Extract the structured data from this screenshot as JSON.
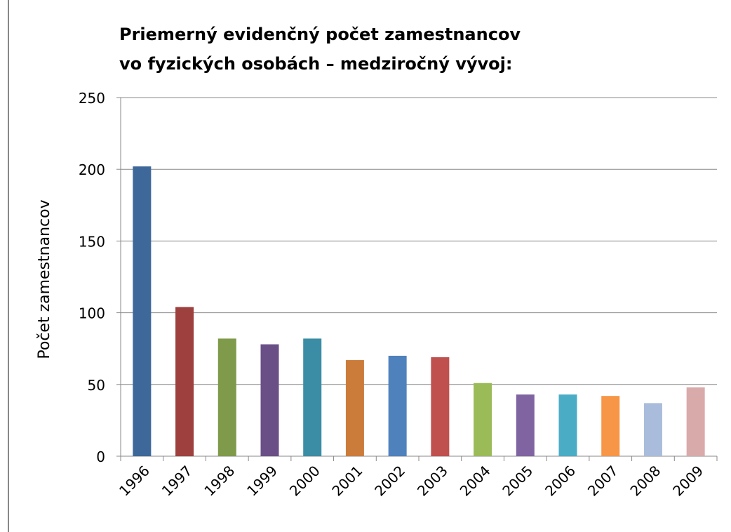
{
  "chart_data": {
    "type": "bar",
    "title": [
      "Priemerný evidenčný počet zamestnancov",
      "vo fyzických osobách – medziročný vývoj:"
    ],
    "ylabel": "Počet  zamestnancov",
    "categories": [
      "1996",
      "1997",
      "1998",
      "1999",
      "2000",
      "2001",
      "2002",
      "2003",
      "2004",
      "2005",
      "2006",
      "2007",
      "2008",
      "2009"
    ],
    "values": [
      202,
      104,
      82,
      78,
      82,
      67,
      70,
      69,
      51,
      43,
      43,
      42,
      37,
      48
    ],
    "colors": [
      "#3d6899",
      "#9e403d",
      "#7f9a4a",
      "#6a4f87",
      "#3a8da4",
      "#cc7c3a",
      "#4f81bd",
      "#c0504d",
      "#9bbb59",
      "#8064a2",
      "#4bacc6",
      "#f79646",
      "#a9bcdb",
      "#d9aaaa"
    ],
    "ylim": [
      0,
      250
    ],
    "yticks": [
      0,
      50,
      100,
      150,
      200,
      250
    ],
    "grid": true
  }
}
